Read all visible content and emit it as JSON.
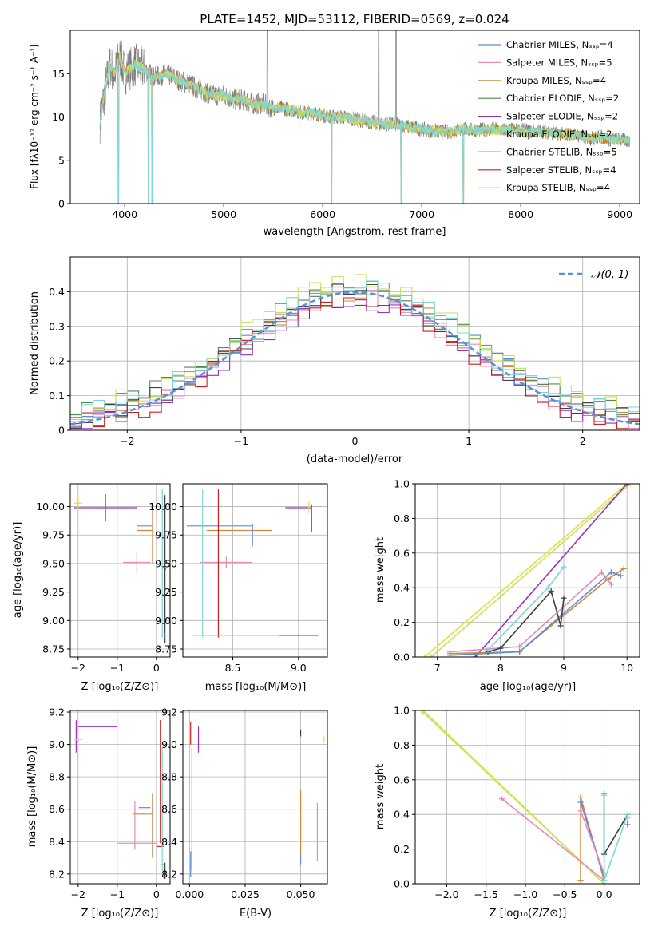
{
  "chart_data": [
    {
      "id": "spectrum",
      "type": "line",
      "title": "PLATE=1452, MJD=53112, FIBERID=0569, z=0.024",
      "xlabel": "wavelength [Angstrom, rest frame]",
      "ylabel": "Flux [fλ10⁻¹⁷ erg cm⁻² s⁻¹ A⁻¹]",
      "xlim": [
        3450,
        9200
      ],
      "ylim": [
        0,
        20
      ],
      "xticks": [
        4000,
        5000,
        6000,
        7000,
        8000,
        9000
      ],
      "yticks": [
        0,
        5,
        10,
        15
      ],
      "legend_position": "upper right",
      "legend": [
        {
          "label": "Chabrier MILES, Nₛₛₚ=4",
          "color": "#5b8fd6"
        },
        {
          "label": "Salpeter MILES, Nₛₛₚ=5",
          "color": "#e88ab4"
        },
        {
          "label": "Kroupa MILES, Nₛₛₚ=4",
          "color": "#d4863a"
        },
        {
          "label": "Chabrier ELODIE, Nₛₛₚ=2",
          "color": "#4f8a4f"
        },
        {
          "label": "Salpeter ELODIE, Nₛₛₚ=2",
          "color": "#9b2fc2"
        },
        {
          "label": "Kroupa ELODIE, Nₛₛₚ=2",
          "color": "#e0e040"
        },
        {
          "label": "Chabrier STELIB, Nₛₛₚ=5",
          "color": "#404040"
        },
        {
          "label": "Salpeter STELIB, Nₛₛₚ=4",
          "color": "#cc2020"
        },
        {
          "label": "Kroupa STELIB, Nₛₛₚ=4",
          "color": "#7fd6d6"
        }
      ],
      "data_color": "#7f7f7f",
      "model_color": "#7fd6d6",
      "model_accent_color": "#d9792b",
      "continuum": [
        [
          3750,
          9.5
        ],
        [
          3800,
          13
        ],
        [
          3850,
          16
        ],
        [
          3900,
          15
        ],
        [
          3950,
          17
        ],
        [
          4000,
          15
        ],
        [
          4100,
          16
        ],
        [
          4200,
          15.5
        ],
        [
          4300,
          14.5
        ],
        [
          4400,
          15
        ],
        [
          4500,
          14.5
        ],
        [
          4600,
          14
        ],
        [
          4700,
          13.5
        ],
        [
          4800,
          13
        ],
        [
          4900,
          12.5
        ],
        [
          5000,
          12.5
        ],
        [
          5100,
          12
        ],
        [
          5200,
          12
        ],
        [
          5300,
          11.5
        ],
        [
          5400,
          11.5
        ],
        [
          5500,
          11
        ],
        [
          5600,
          11
        ],
        [
          5700,
          10.8
        ],
        [
          5800,
          10.5
        ],
        [
          5900,
          10.5
        ],
        [
          6000,
          10.2
        ],
        [
          6100,
          10
        ],
        [
          6200,
          10
        ],
        [
          6300,
          9.8
        ],
        [
          6400,
          9.6
        ],
        [
          6500,
          9.4
        ],
        [
          6600,
          9.2
        ],
        [
          6700,
          9.2
        ],
        [
          6800,
          9
        ],
        [
          6900,
          8.8
        ],
        [
          7000,
          8.6
        ],
        [
          7100,
          8.4
        ],
        [
          7200,
          8.3
        ],
        [
          7300,
          8.3
        ],
        [
          7400,
          8.6
        ],
        [
          7500,
          8.5
        ],
        [
          7600,
          8.5
        ],
        [
          7700,
          8.6
        ],
        [
          7800,
          8.5
        ],
        [
          7900,
          8.5
        ],
        [
          8000,
          8.5
        ],
        [
          8100,
          8.3
        ],
        [
          8200,
          8.4
        ],
        [
          8300,
          8.2
        ],
        [
          8400,
          8
        ],
        [
          8500,
          8
        ],
        [
          8600,
          7.8
        ],
        [
          8700,
          7.5
        ],
        [
          8800,
          7.7
        ],
        [
          8900,
          7.4
        ],
        [
          9000,
          7.4
        ],
        [
          9100,
          7.2
        ]
      ],
      "model_drops": [
        3935,
        4240,
        4275,
        6090,
        6790,
        7420
      ],
      "data_spikes": [
        5440,
        6565,
        6740
      ]
    },
    {
      "id": "residuals",
      "type": "line",
      "xlabel": "(data-model)/error",
      "ylabel": "Normed distribution",
      "xlim": [
        -2.5,
        2.5
      ],
      "ylim": [
        0,
        0.5
      ],
      "xticks": [
        -2,
        -1,
        0,
        1,
        2
      ],
      "yticks": [
        0.0,
        0.1,
        0.2,
        0.3,
        0.4
      ],
      "grid": true,
      "legend_position": "upper right",
      "gauss_label": "𝒩(0, 1)",
      "gauss_color": "#5b8fd6",
      "bin_width": 0.1,
      "series": [
        {
          "color": "#5b8fd6",
          "offset": 0.01
        },
        {
          "color": "#e88ab4",
          "offset": -0.01
        },
        {
          "color": "#d4863a",
          "offset": 0.0
        },
        {
          "color": "#4f8a4f",
          "offset": 0.02
        },
        {
          "color": "#9b2fc2",
          "offset": -0.02
        },
        {
          "color": "#c7e25a",
          "offset": 0.03
        },
        {
          "color": "#404040",
          "offset": 0.0
        },
        {
          "color": "#cc2020",
          "offset": -0.015
        },
        {
          "color": "#7fd6d6",
          "offset": 0.015
        }
      ]
    },
    {
      "id": "age-vs-Z",
      "type": "scatter",
      "xlabel": "Z [log₁₀(Z/Z⊙)]",
      "ylabel": "age  [log₁₀(age/yr)]",
      "xlim": [
        -2.2,
        0.35
      ],
      "ylim": [
        8.68,
        10.2
      ],
      "xticks": [
        -2,
        -1,
        0
      ],
      "yticks": [
        8.75,
        9.0,
        9.25,
        9.5,
        9.75,
        10.0
      ],
      "grid": true,
      "points": [
        {
          "color": "#9b2fc2",
          "x": -1.3,
          "xerr": 0.8,
          "y": 9.99,
          "yerr": 0.12,
          "dir": "left"
        },
        {
          "color": "#e0e040",
          "x": -2.0,
          "xerr": 0.1,
          "y": 10.03,
          "yerr": 0.08
        },
        {
          "color": "#5b8fd6",
          "x": -0.3,
          "xerr": 0.2,
          "y": 9.83,
          "yerr": 0.0
        },
        {
          "color": "#d4863a",
          "x": -0.3,
          "xerr": 0.2,
          "y": 9.79,
          "yerr": 0.0
        },
        {
          "color": "#d4863a",
          "x": -0.1,
          "xerr": 0.0,
          "y": 9.75,
          "yerr": 0.25
        },
        {
          "color": "#e88ab4",
          "x": -0.5,
          "xerr": 0.35,
          "y": 9.51,
          "yerr": 0.1
        },
        {
          "color": "#7fd6d6",
          "x": 0.15,
          "xerr": 0.05,
          "y": 9.5,
          "yerr": 0.65
        },
        {
          "color": "#404040",
          "x": 0.22,
          "xerr": 0.03,
          "y": 9.45,
          "yerr": 0.65
        },
        {
          "color": "#7fd6d6",
          "x": 0.2,
          "xerr": 0.08,
          "y": 8.87,
          "yerr": 0.03
        }
      ]
    },
    {
      "id": "age-vs-mass",
      "type": "scatter",
      "xlabel": "mass [log₁₀(M/M⊙)]",
      "xlim": [
        8.12,
        9.22
      ],
      "ylim": [
        8.68,
        10.2
      ],
      "xticks": [
        8.5,
        9.0
      ],
      "yticks": [
        8.75,
        9.0,
        9.25,
        9.5,
        9.75,
        10.0
      ],
      "grid": true,
      "points": [
        {
          "color": "#5b8fd6",
          "x": 8.4,
          "xerr": 0.25,
          "y": 9.83,
          "yerr": 0.0
        },
        {
          "color": "#d4863a",
          "x": 8.55,
          "xerr": 0.25,
          "y": 9.79,
          "yerr": 0.0
        },
        {
          "color": "#5b8fd6",
          "x": 8.65,
          "xerr": 0.0,
          "y": 9.75,
          "yerr": 0.1
        },
        {
          "color": "#e88ab4",
          "x": 8.45,
          "xerr": 0.2,
          "y": 9.51,
          "yerr": 0.05
        },
        {
          "color": "#cc2020",
          "x": 8.39,
          "xerr": 0.0,
          "y": 9.5,
          "yerr": 0.65
        },
        {
          "color": "#7fd6d6",
          "x": 8.27,
          "xerr": 0.0,
          "y": 9.5,
          "yerr": 0.65
        },
        {
          "color": "#7fd6d6",
          "x": 8.6,
          "xerr": 0.4,
          "y": 8.87,
          "yerr": 0.0
        },
        {
          "color": "#cc2020",
          "x": 9.0,
          "xerr": 0.15,
          "y": 8.87,
          "yerr": 0.0
        },
        {
          "color": "#9b2fc2",
          "x": 9.0,
          "xerr": 0.1,
          "y": 9.99,
          "yerr": 0.0
        },
        {
          "color": "#9b2fc2",
          "x": 9.1,
          "xerr": 0.0,
          "y": 9.9,
          "yerr": 0.12
        },
        {
          "color": "#e0e040",
          "x": 9.08,
          "xerr": 0.0,
          "y": 10.0,
          "yerr": 0.05
        }
      ]
    },
    {
      "id": "massweight-vs-age",
      "type": "line",
      "xlabel": "age  [log₁₀(age/yr)]",
      "ylabel": "mass weight",
      "xlim": [
        6.65,
        10.2
      ],
      "ylim": [
        0,
        1
      ],
      "xticks": [
        7,
        8,
        9,
        10
      ],
      "yticks": [
        0.0,
        0.2,
        0.4,
        0.6,
        0.8,
        1.0
      ],
      "grid": true,
      "series": [
        {
          "color": "#e0e040",
          "x": [
            6.8,
            10.0
          ],
          "y": [
            0.0,
            1.0
          ]
        },
        {
          "color": "#c7e25a",
          "x": [
            6.9,
            10.05
          ],
          "y": [
            0.0,
            1.0
          ]
        },
        {
          "color": "#9b2fc2",
          "x": [
            7.6,
            10.0
          ],
          "y": [
            0.0,
            1.0
          ]
        },
        {
          "color": "#d4863a",
          "x": [
            7.2,
            8.3,
            9.7,
            9.95
          ],
          "y": [
            0.02,
            0.03,
            0.45,
            0.51
          ]
        },
        {
          "color": "#5b8fd6",
          "x": [
            7.2,
            8.3,
            9.75,
            9.9
          ],
          "y": [
            0.01,
            0.03,
            0.49,
            0.47
          ]
        },
        {
          "color": "#e88ab4",
          "x": [
            7.2,
            8.3,
            9.6,
            9.75
          ],
          "y": [
            0.03,
            0.06,
            0.49,
            0.42
          ]
        },
        {
          "color": "#404040",
          "x": [
            7.8,
            8.0,
            8.8,
            8.95,
            9.0
          ],
          "y": [
            0.03,
            0.05,
            0.38,
            0.18,
            0.34
          ]
        },
        {
          "color": "#7fd6d6",
          "x": [
            7.8,
            8.75,
            9.0
          ],
          "y": [
            0.04,
            0.4,
            0.52
          ]
        }
      ]
    },
    {
      "id": "mass-vs-Z",
      "type": "scatter",
      "xlabel": "Z [log₁₀(Z/Z⊙)]",
      "ylabel": "mass [log₁₀(M/M⊙)]",
      "xlim": [
        -2.2,
        0.35
      ],
      "ylim": [
        8.14,
        9.21
      ],
      "xticks": [
        -2,
        -1,
        0
      ],
      "yticks": [
        8.2,
        8.4,
        8.6,
        8.8,
        9.0,
        9.2
      ],
      "grid": true,
      "points": [
        {
          "color": "#9b2fc2",
          "x": -1.5,
          "xerr": 0.5,
          "y": 9.11,
          "yerr": 0.0
        },
        {
          "color": "#9b2fc2",
          "x": -2.05,
          "xerr": 0.0,
          "y": 9.05,
          "yerr": 0.1
        },
        {
          "color": "#e0e040",
          "x": -2.0,
          "xerr": 0.1,
          "y": 9.03,
          "yerr": 0.0
        },
        {
          "color": "#5b8fd6",
          "x": -0.3,
          "xerr": 0.15,
          "y": 8.61,
          "yerr": 0.0
        },
        {
          "color": "#d4863a",
          "x": -0.35,
          "xerr": 0.25,
          "y": 8.57,
          "yerr": 0.0
        },
        {
          "color": "#5b8fd6",
          "x": -0.1,
          "xerr": 0.0,
          "y": 8.5,
          "yerr": 0.2
        },
        {
          "color": "#d4863a",
          "x": -0.1,
          "xerr": 0.0,
          "y": 8.5,
          "yerr": 0.2
        },
        {
          "color": "#e88ab4",
          "x": -0.5,
          "xerr": 0.5,
          "y": 8.39,
          "yerr": 0.0
        },
        {
          "color": "#e88ab4",
          "x": -0.55,
          "xerr": 0.0,
          "y": 8.5,
          "yerr": 0.15
        },
        {
          "color": "#cc2020",
          "x": 0.1,
          "xerr": 0.1,
          "y": 8.37,
          "yerr": 0.0
        },
        {
          "color": "#cc2020",
          "x": 0.1,
          "xerr": 0.0,
          "y": 8.77,
          "yerr": 0.38
        },
        {
          "color": "#7fd6d6",
          "x": 0.15,
          "xerr": 0.05,
          "y": 8.6,
          "yerr": 0.38
        },
        {
          "color": "#404040",
          "x": 0.22,
          "xerr": 0.02,
          "y": 8.22,
          "yerr": 0.05
        },
        {
          "color": "#7fd6d6",
          "x": 0.15,
          "xerr": 0.05,
          "y": 8.26,
          "yerr": 0.0
        }
      ]
    },
    {
      "id": "mass-vs-EBV",
      "type": "scatter",
      "xlabel": "E(B-V)",
      "xlim": [
        -0.003,
        0.062
      ],
      "ylim": [
        8.14,
        9.21
      ],
      "xticks": [
        0.0,
        0.025,
        0.05
      ],
      "yticks": [
        8.2,
        8.4,
        8.6,
        8.8,
        9.0,
        9.2
      ],
      "grid": true,
      "points": [
        {
          "color": "#cc2020",
          "x": 0.0005,
          "xerr": 0.0,
          "y": 9.07,
          "yerr": 0.07
        },
        {
          "color": "#7fd6d6",
          "x": 0.001,
          "xerr": 0.0,
          "y": 8.6,
          "yerr": 0.38
        },
        {
          "color": "#5b8fd6",
          "x": 0.0005,
          "xerr": 0.0,
          "y": 8.26,
          "yerr": 0.08
        },
        {
          "color": "#9b2fc2",
          "x": 0.004,
          "xerr": 0.0,
          "y": 9.03,
          "yerr": 0.08
        },
        {
          "color": "#404040",
          "x": 0.05,
          "xerr": 0.0,
          "y": 9.07,
          "yerr": 0.02
        },
        {
          "color": "#d4863a",
          "x": 0.05,
          "xerr": 0.0,
          "y": 8.52,
          "yerr": 0.2
        },
        {
          "color": "#5b8fd6",
          "x": 0.05,
          "xerr": 0.0,
          "y": 8.29,
          "yerr": 0.03
        },
        {
          "color": "#e88ab4",
          "x": 0.0575,
          "xerr": 0.0,
          "y": 8.46,
          "yerr": 0.18
        },
        {
          "color": "#e0e040",
          "x": 0.0605,
          "xerr": 0.0,
          "y": 9.03,
          "yerr": 0.02
        }
      ]
    },
    {
      "id": "massweight-vs-Z",
      "type": "line",
      "xlabel": "Z [log₁₀(Z/Z⊙)]",
      "ylabel": "mass weight",
      "xlim": [
        -2.4,
        0.45
      ],
      "ylim": [
        0,
        1
      ],
      "xticks": [
        -2.0,
        -1.5,
        -1.0,
        -0.5,
        0.0
      ],
      "yticks": [
        0.0,
        0.2,
        0.4,
        0.6,
        0.8,
        1.0
      ],
      "grid": true,
      "series": [
        {
          "color": "#e0e040",
          "x": [
            -2.3,
            0.0
          ],
          "y": [
            1.0,
            0.0
          ]
        },
        {
          "color": "#c7e25a",
          "x": [
            -2.3,
            0.0
          ],
          "y": [
            0.99,
            0.0
          ]
        },
        {
          "color": "#e88ab4",
          "x": [
            -1.3,
            0.0
          ],
          "y": [
            0.49,
            0.02
          ]
        },
        {
          "color": "#d4863a",
          "x": [
            -0.3,
            -0.3,
            0.0
          ],
          "y": [
            0.02,
            0.5,
            0.02
          ]
        },
        {
          "color": "#5b8fd6",
          "x": [
            -0.3,
            0.0
          ],
          "y": [
            0.47,
            0.04
          ]
        },
        {
          "color": "#e88ab4",
          "x": [
            -0.3,
            0.0
          ],
          "y": [
            0.42,
            0.06
          ]
        },
        {
          "color": "#404040",
          "x": [
            0.0,
            0.0,
            0.3,
            0.3
          ],
          "y": [
            0.52,
            0.17,
            0.4,
            0.34
          ]
        },
        {
          "color": "#7fd6d6",
          "x": [
            0.0,
            0.0,
            0.3,
            0.3
          ],
          "y": [
            0.51,
            0.02,
            0.4,
            0.38
          ]
        }
      ]
    }
  ]
}
